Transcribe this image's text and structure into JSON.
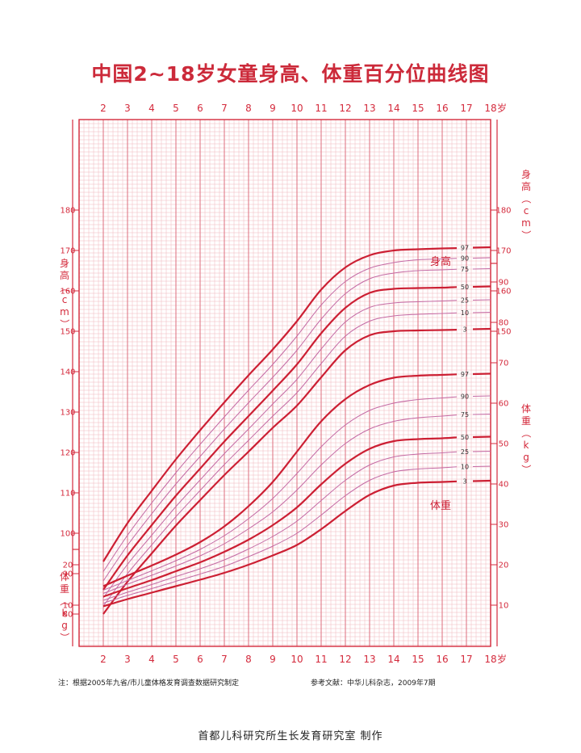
{
  "title": "中国2~18岁女童身高、体重百分位曲线图",
  "note_left": "注：根据2005年九省/市儿童体格发育调查数据研究制定",
  "note_right": "参考文献：中华儿科杂志，2009年7期",
  "footer": "首都儿科研究所生长发育研究室  制作",
  "colors": {
    "accent": "#d42a3c",
    "grid_minor": "#f0b6bd",
    "grid_mid": "#e07a88",
    "curve_thin": "#c46aa4",
    "curve_bold": "#cc1f33"
  },
  "chart_data": {
    "type": "line",
    "x_ticks": [
      "2",
      "3",
      "4",
      "5",
      "6",
      "7",
      "8",
      "9",
      "10",
      "11",
      "12",
      "13",
      "14",
      "15",
      "16",
      "17",
      "18"
    ],
    "x_unit": "岁",
    "height": {
      "axis_label": "身高（cm）",
      "ylim": [
        80,
        180
      ],
      "ticks": [
        80,
        90,
        100,
        110,
        120,
        130,
        140,
        150,
        160,
        170,
        180
      ],
      "curve_label": "身高",
      "x": [
        2,
        3,
        4,
        5,
        6,
        7,
        8,
        9,
        10,
        11,
        12,
        13,
        14,
        15,
        16,
        17,
        18
      ],
      "series": [
        {
          "name": "97",
          "values": [
            93.0,
            102.5,
            110.5,
            118.3,
            125.5,
            132.4,
            139.1,
            145.5,
            152.5,
            160.3,
            165.8,
            168.8,
            170.0,
            170.3,
            170.5,
            170.5,
            170.7
          ]
        },
        {
          "name": "90",
          "values": [
            90.5,
            99.5,
            107.5,
            115.0,
            122.0,
            128.8,
            135.4,
            141.8,
            148.8,
            156.5,
            162.3,
            165.6,
            167.0,
            167.7,
            167.9,
            168.0,
            168.1
          ]
        },
        {
          "name": "75",
          "values": [
            88.2,
            97.0,
            104.8,
            112.2,
            119.0,
            125.8,
            132.3,
            138.6,
            145.3,
            153.0,
            159.3,
            163.0,
            164.4,
            165.0,
            165.2,
            165.3,
            165.4
          ]
        },
        {
          "name": "50",
          "values": [
            86.0,
            94.5,
            102.0,
            109.3,
            116.0,
            122.7,
            129.0,
            135.3,
            141.8,
            149.5,
            155.8,
            159.5,
            160.5,
            160.7,
            160.8,
            160.9,
            161.0
          ]
        },
        {
          "name": "25",
          "values": [
            84.0,
            92.3,
            99.5,
            106.6,
            113.2,
            119.7,
            125.8,
            132.0,
            138.1,
            145.6,
            152.3,
            155.9,
            157.0,
            157.3,
            157.5,
            157.6,
            157.7
          ]
        },
        {
          "name": "10",
          "values": [
            82.0,
            90.0,
            97.1,
            104.1,
            110.6,
            117.0,
            123.0,
            129.0,
            134.8,
            142.0,
            148.8,
            152.5,
            153.8,
            154.2,
            154.4,
            154.5,
            154.6
          ]
        },
        {
          "name": "3",
          "values": [
            80.0,
            88.0,
            95.0,
            101.9,
            108.2,
            114.4,
            120.2,
            126.1,
            131.6,
            138.6,
            145.3,
            149.0,
            150.0,
            150.2,
            150.3,
            150.3,
            150.5
          ]
        }
      ]
    },
    "weight": {
      "axis_label": "体重（kg）",
      "ylim": [
        0,
        95
      ],
      "left_ticks": [
        10,
        20
      ],
      "right_ticks": [
        10,
        20,
        30,
        40,
        50,
        60,
        70,
        80,
        90
      ],
      "curve_label": "体重",
      "x": [
        2,
        3,
        4,
        5,
        6,
        7,
        8,
        9,
        10,
        11,
        12,
        13,
        14,
        15,
        16,
        17,
        18
      ],
      "series": [
        {
          "name": "97",
          "values": [
            14.7,
            17.3,
            19.8,
            22.5,
            25.6,
            29.5,
            34.5,
            40.5,
            48.0,
            55.5,
            61.0,
            64.5,
            66.3,
            66.8,
            67.0,
            67.1,
            67.2
          ]
        },
        {
          "name": "90",
          "values": [
            13.7,
            16.1,
            18.5,
            21.0,
            23.8,
            27.2,
            31.4,
            36.4,
            42.6,
            49.2,
            54.6,
            58.2,
            60.0,
            60.9,
            61.3,
            61.5,
            61.7
          ]
        },
        {
          "name": "75",
          "values": [
            12.9,
            15.2,
            17.4,
            19.7,
            22.2,
            25.2,
            28.9,
            33.1,
            38.5,
            44.7,
            50.0,
            53.6,
            55.5,
            56.4,
            56.8,
            57.0,
            57.2
          ]
        },
        {
          "name": "50",
          "values": [
            12.1,
            14.2,
            16.2,
            18.4,
            20.6,
            23.2,
            26.2,
            29.8,
            34.2,
            39.9,
            45.0,
            48.7,
            50.6,
            51.1,
            51.3,
            51.5,
            51.6
          ]
        },
        {
          "name": "25",
          "values": [
            11.2,
            13.2,
            15.1,
            17.1,
            19.0,
            21.2,
            23.9,
            27.0,
            30.8,
            35.9,
            40.9,
            44.7,
            46.7,
            47.4,
            47.7,
            47.9,
            48.0
          ]
        },
        {
          "name": "10",
          "values": [
            10.5,
            12.4,
            14.1,
            15.9,
            17.7,
            19.6,
            22.0,
            24.6,
            27.8,
            32.3,
            37.1,
            40.9,
            43.0,
            43.7,
            44.0,
            44.2,
            44.3
          ]
        },
        {
          "name": "3",
          "values": [
            9.7,
            11.5,
            13.1,
            14.7,
            16.3,
            18.0,
            20.0,
            22.3,
            24.9,
            28.8,
            33.3,
            37.3,
            39.6,
            40.3,
            40.5,
            40.6,
            40.7
          ]
        }
      ]
    }
  }
}
